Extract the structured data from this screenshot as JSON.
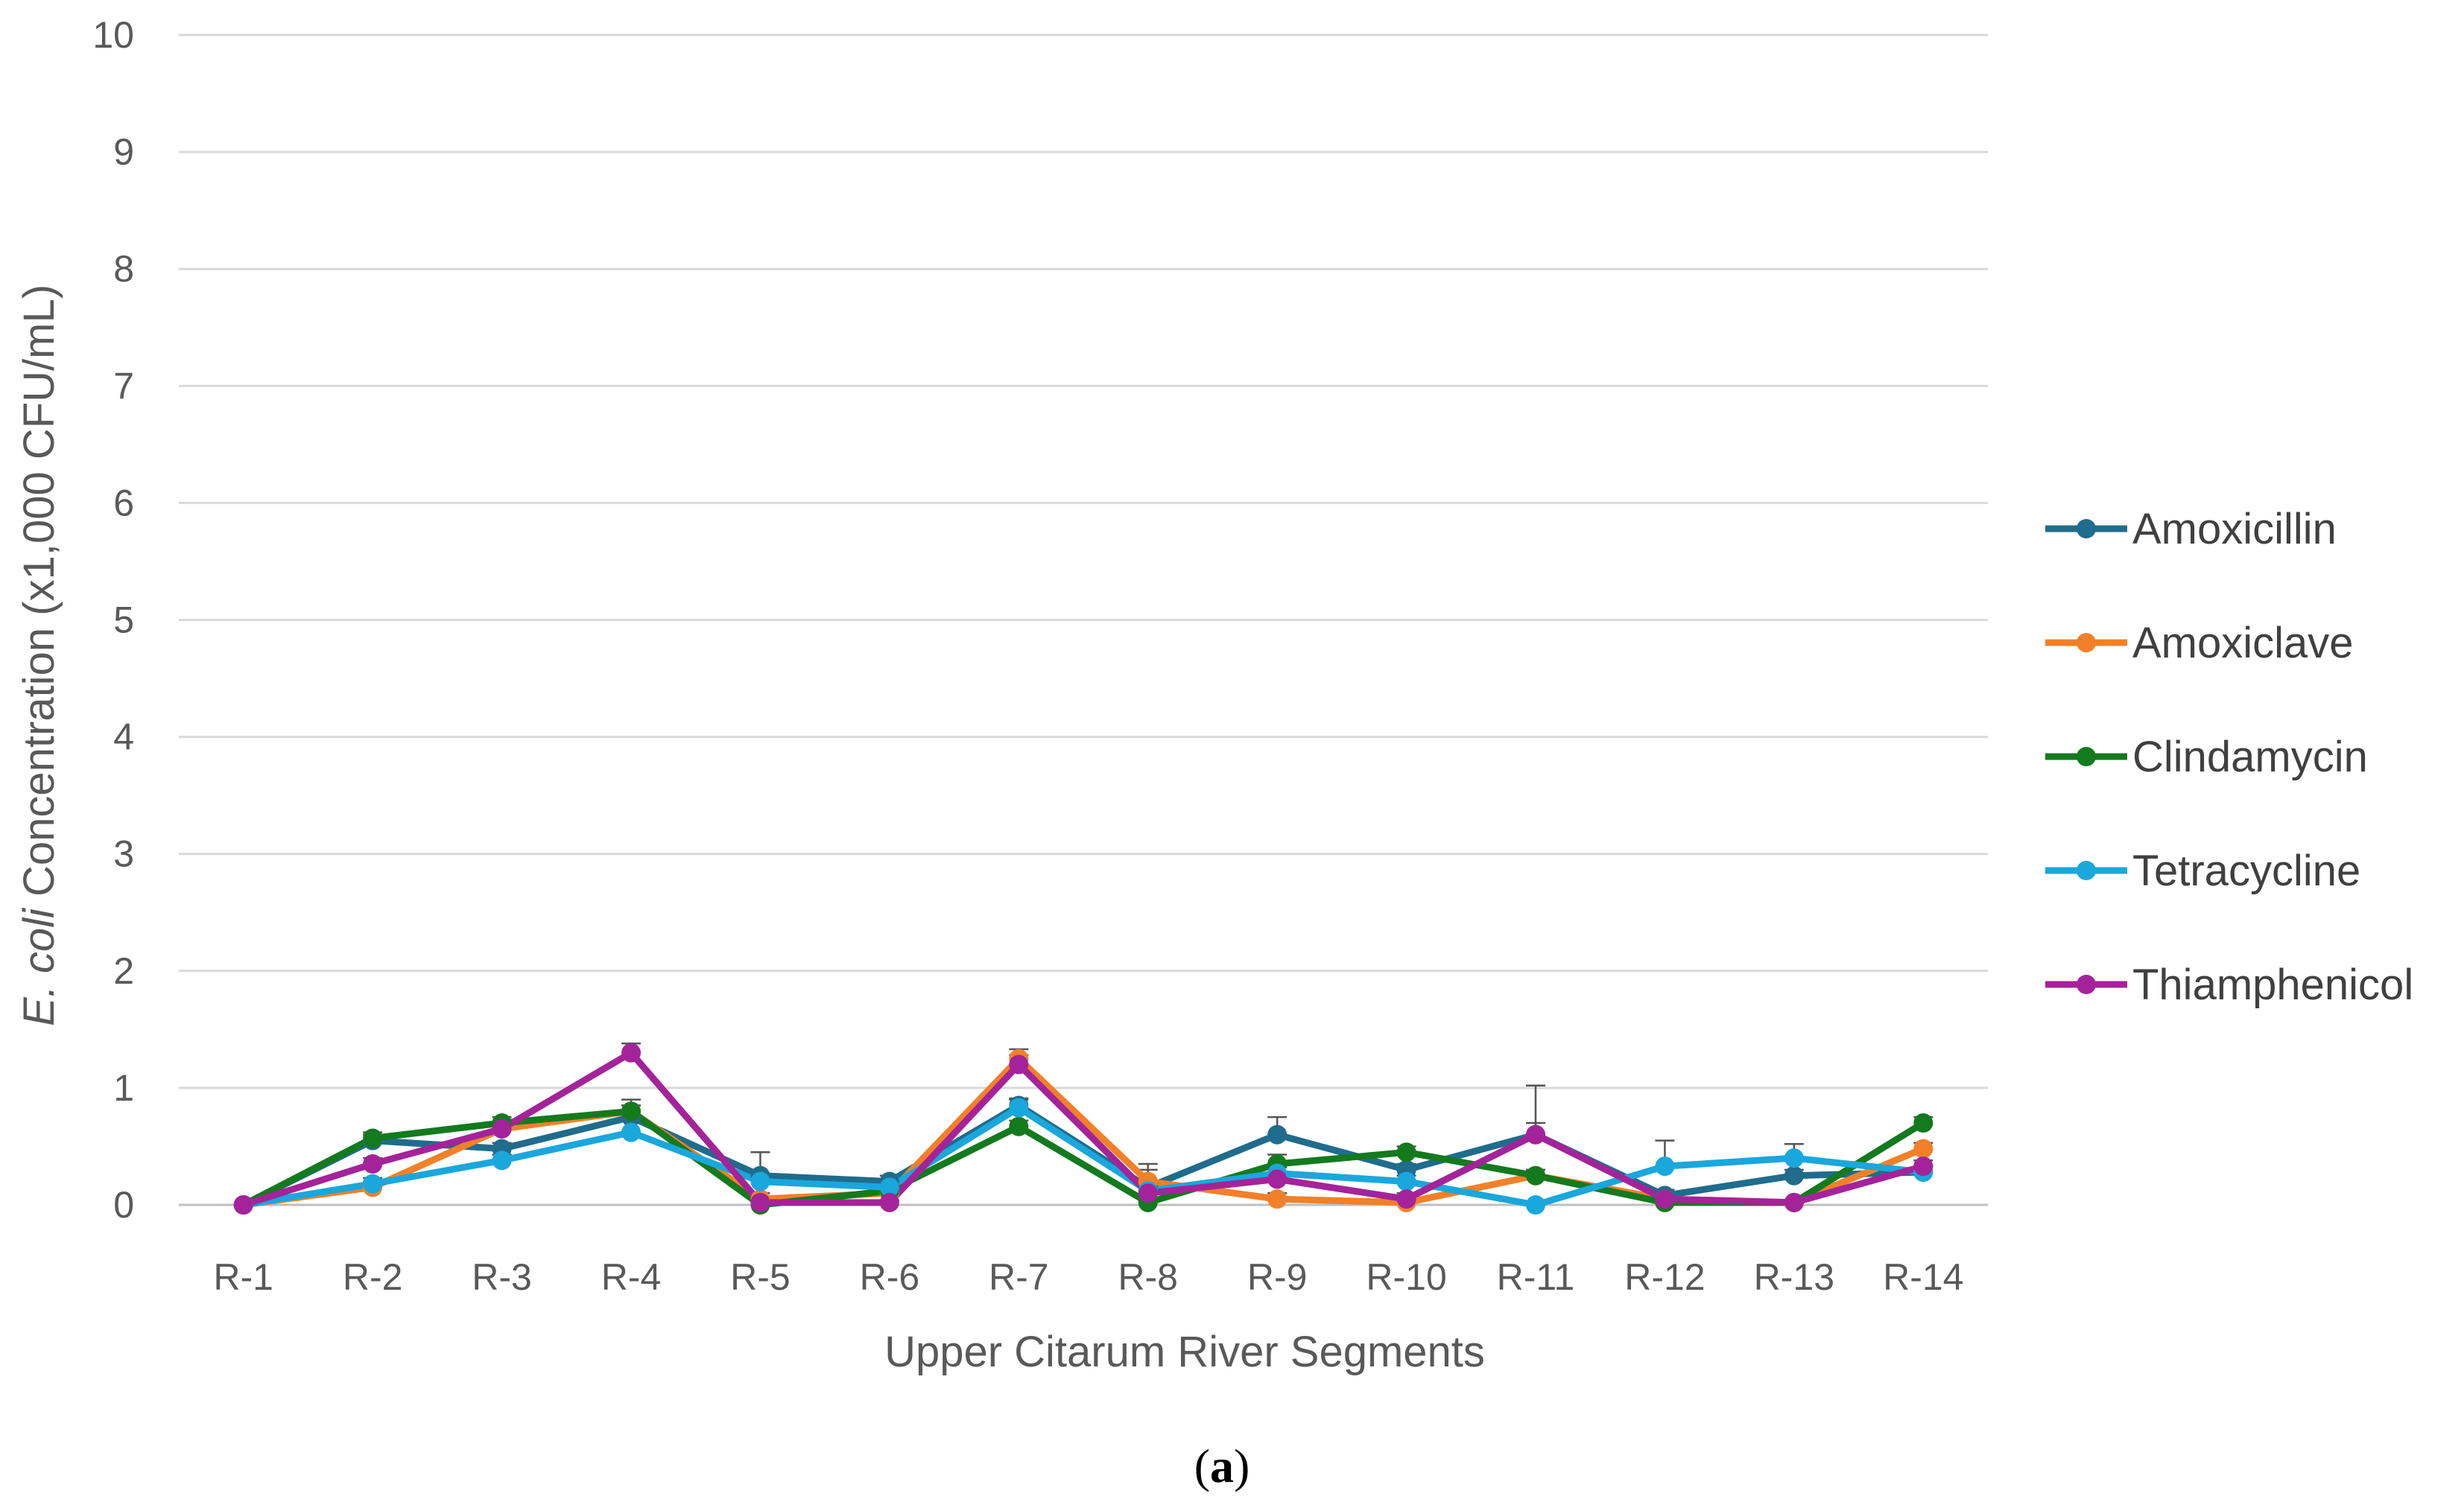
{
  "chart_data": {
    "type": "line",
    "categories": [
      "R-1",
      "R-2",
      "R-3",
      "R-4",
      "R-5",
      "R-6",
      "R-7",
      "R-8",
      "R-9",
      "R-10",
      "R-11",
      "R-12",
      "R-13",
      "R-14"
    ],
    "xlabel": "Upper Citarum River Segments",
    "ylabel_italic": "E. coli",
    "ylabel_rest": " Concentration (x1,000 CFU/mL)",
    "ylim": [
      0,
      10
    ],
    "yticks": [
      "0",
      "1",
      "2",
      "3",
      "4",
      "5",
      "6",
      "7",
      "8",
      "9",
      "10"
    ],
    "grid": "horizontal",
    "legend_position": "right",
    "error_bars": true,
    "series": [
      {
        "name": "Amoxicillin",
        "color": "#1F6C8C",
        "values": [
          0,
          0.55,
          0.48,
          0.75,
          0.25,
          0.2,
          0.85,
          0.15,
          0.6,
          0.3,
          0.6,
          0.08,
          0.25,
          0.28
        ],
        "errors": [
          0,
          0.05,
          0.05,
          0.1,
          0.2,
          0.05,
          0.05,
          0.2,
          0.15,
          0.05,
          0.42,
          0.05,
          0.05,
          0.05
        ]
      },
      {
        "name": "Amoxiclave",
        "color": "#F28028",
        "values": [
          0,
          0.15,
          0.65,
          0.8,
          0.05,
          0.1,
          1.25,
          0.2,
          0.05,
          0.02,
          0.25,
          0.05,
          0.02,
          0.48
        ],
        "errors": [
          0,
          0.05,
          0.05,
          0.1,
          0.05,
          0.05,
          0.08,
          0.1,
          0.05,
          0.02,
          0.05,
          0.05,
          0.02,
          0.05
        ]
      },
      {
        "name": "Clindamycin",
        "color": "#147A1E",
        "values": [
          0,
          0.57,
          0.7,
          0.8,
          0.0,
          0.12,
          0.67,
          0.02,
          0.35,
          0.45,
          0.25,
          0.02,
          0.02,
          0.7
        ],
        "errors": [
          0,
          0.05,
          0.05,
          0.05,
          0.02,
          0.05,
          0.05,
          0.02,
          0.08,
          0.05,
          0.05,
          0.02,
          0.02,
          0.05
        ]
      },
      {
        "name": "Tetracycline",
        "color": "#1AA7DC",
        "values": [
          0,
          0.18,
          0.38,
          0.62,
          0.2,
          0.15,
          0.83,
          0.12,
          0.27,
          0.2,
          0.0,
          0.33,
          0.4,
          0.28
        ],
        "errors": [
          0,
          0.05,
          0.05,
          0.1,
          0.05,
          0.05,
          0.08,
          0.05,
          0.05,
          0.05,
          0.02,
          0.22,
          0.12,
          0.05
        ]
      },
      {
        "name": "Thiamphenicol",
        "color": "#A4239A",
        "values": [
          0,
          0.35,
          0.65,
          1.3,
          0.02,
          0.02,
          1.2,
          0.1,
          0.22,
          0.05,
          0.6,
          0.05,
          0.02,
          0.33
        ],
        "errors": [
          0,
          0.05,
          0.05,
          0.08,
          0.02,
          0.02,
          0.08,
          0.05,
          0.05,
          0.05,
          0.1,
          0.05,
          0.02,
          0.05
        ]
      }
    ]
  },
  "caption": {
    "open": "(",
    "letter": "a",
    "close": ")"
  }
}
